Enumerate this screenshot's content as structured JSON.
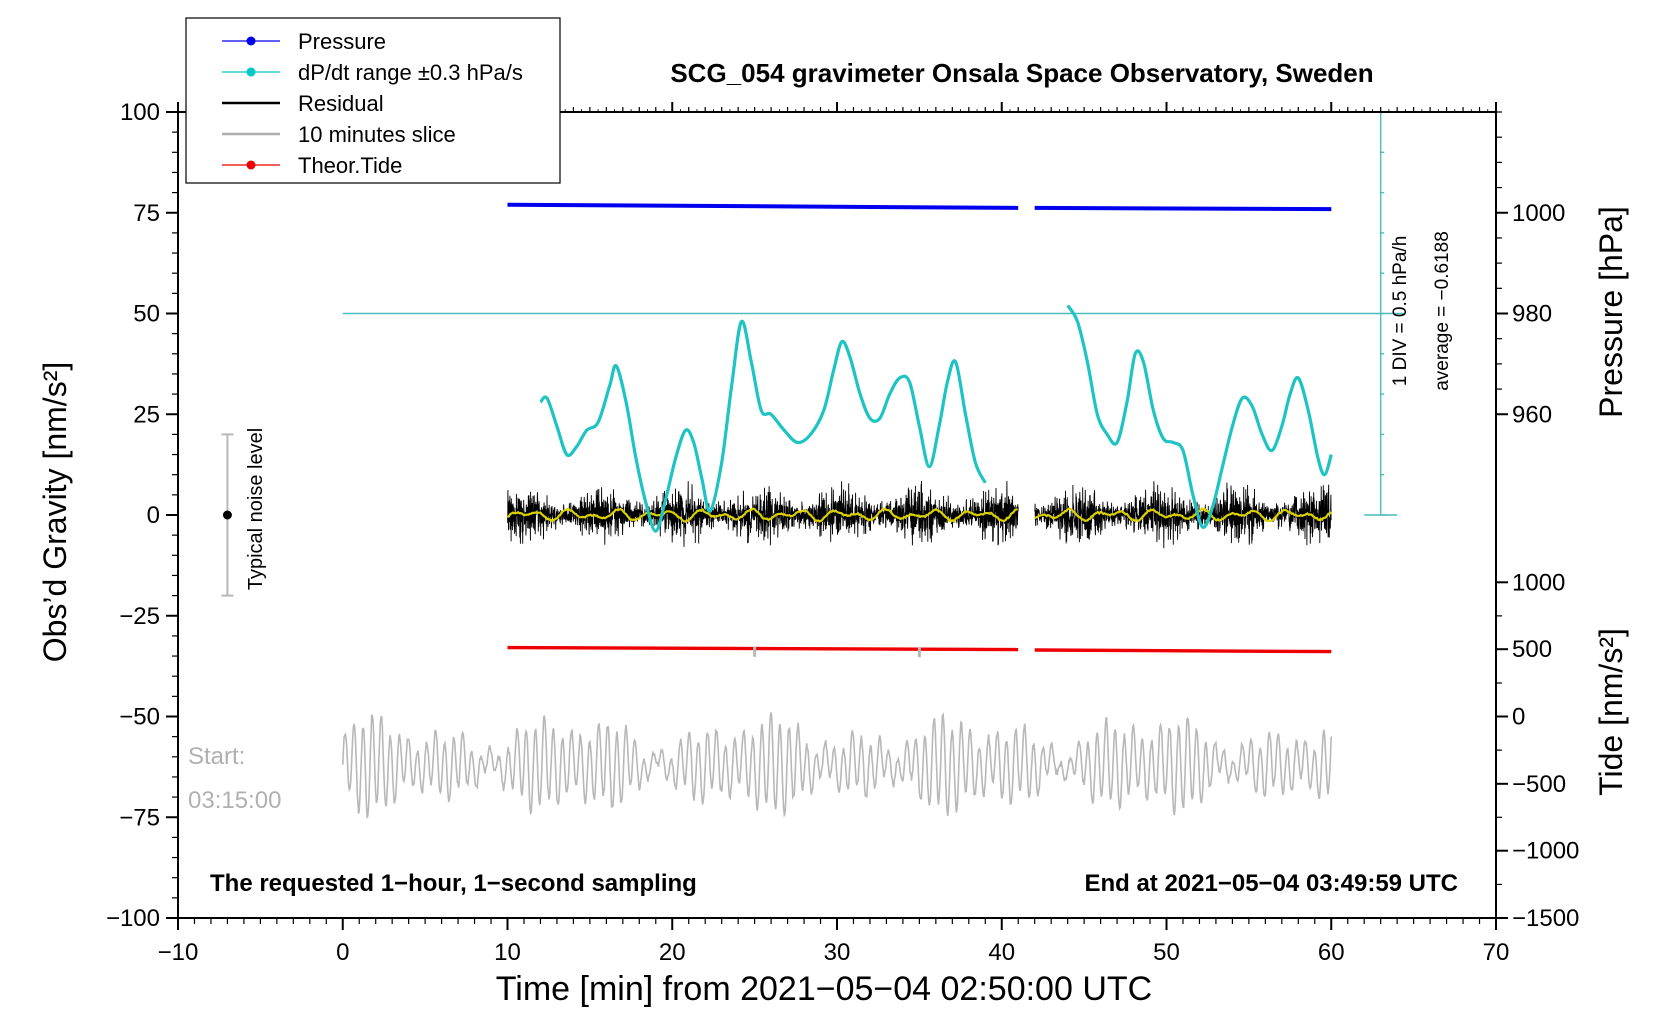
{
  "chart_data": {
    "type": "line",
    "title": "SCG_054 gravimeter Onsala Space Observatory, Sweden",
    "xlabel": "Time [min] from 2021−05−04 02:50:00 UTC",
    "ylabel_left": "Obs’d Gravity [nm/s²]",
    "ylabel_right_top": "Pressure [hPa]",
    "ylabel_right_bottom": "Tide [nm/s²]",
    "xlim": [
      -10,
      70
    ],
    "ylim_left": [
      -100,
      100
    ],
    "x_ticks": [
      {
        "value": -10,
        "label": "−10"
      },
      {
        "value": 0,
        "label": "0"
      },
      {
        "value": 10,
        "label": "10"
      },
      {
        "value": 20,
        "label": "20"
      },
      {
        "value": 30,
        "label": "30"
      },
      {
        "value": 40,
        "label": "40"
      },
      {
        "value": 50,
        "label": "50"
      },
      {
        "value": 60,
        "label": "60"
      },
      {
        "value": 70,
        "label": "70"
      }
    ],
    "y_left_ticks": [
      {
        "value": 100,
        "label": "100"
      },
      {
        "value": 75,
        "label": "75"
      },
      {
        "value": 50,
        "label": "50"
      },
      {
        "value": 25,
        "label": "25"
      },
      {
        "value": 0,
        "label": "0"
      },
      {
        "value": -25,
        "label": "−25"
      },
      {
        "value": -50,
        "label": "−50"
      },
      {
        "value": -75,
        "label": "−75"
      },
      {
        "value": -100,
        "label": "−100"
      }
    ],
    "pressure_axis": {
      "ticks": [
        {
          "value": 1000,
          "label": "1000",
          "at_left_value": 75
        },
        {
          "value": 980,
          "label": "980",
          "at_left_value": 50
        },
        {
          "value": 960,
          "label": "960",
          "at_left_value": 25
        }
      ]
    },
    "tide_axis": {
      "ticks": [
        {
          "value": 1000,
          "label": "1000",
          "at_left_value": -16.7
        },
        {
          "value": 500,
          "label": "500",
          "at_left_value": -33.3
        },
        {
          "value": 0,
          "label": "0",
          "at_left_value": -50
        },
        {
          "value": -500,
          "label": "−500",
          "at_left_value": -66.7
        },
        {
          "value": -1000,
          "label": "−1000",
          "at_left_value": -83.3
        },
        {
          "value": -1500,
          "label": "−1500",
          "at_left_value": -100
        }
      ]
    },
    "legend": {
      "position": "top-left",
      "entries": [
        {
          "label": "Pressure",
          "color": "#0000ee",
          "marker": true
        },
        {
          "label": "dP/dt range ±0.3 hPa/s",
          "color": "#00c8c8",
          "marker": true
        },
        {
          "label": "Residual",
          "color": "#000000",
          "marker": false
        },
        {
          "label": "10 minutes slice",
          "color": "#b0b0b0",
          "marker": false
        },
        {
          "label": "Theor.Tide",
          "color": "#ee0000",
          "marker": true
        }
      ]
    },
    "series": [
      {
        "name": "Pressure",
        "color": "#0000ee",
        "segments": [
          {
            "x": [
              10,
              41
            ],
            "y": [
              77.0,
              76.2
            ]
          },
          {
            "x": [
              42,
              60
            ],
            "y": [
              76.2,
              75.9
            ]
          }
        ]
      },
      {
        "name": "dP/dt",
        "color": "#1ec3c3",
        "segments": [
          {
            "x": [
              12,
              12.4,
              13,
              13.6,
              14.2,
              14.8,
              15.5,
              16.2,
              16.6,
              17.2,
              17.8,
              18.4,
              19,
              19.6,
              20.2,
              20.8,
              21.3,
              21.8,
              22.3,
              23,
              23.6,
              24.2,
              24.8,
              25.4,
              26,
              26.8,
              27.6,
              28.4,
              29.2,
              29.8,
              30.3,
              30.8,
              31.4,
              32,
              32.6,
              33.2,
              33.8,
              34.4,
              35,
              35.6,
              36.2,
              36.7,
              37.2,
              37.8,
              38.4,
              39.0
            ],
            "y": [
              28,
              29,
              22,
              15,
              17,
              21,
              23,
              32,
              37,
              28,
              14,
              3,
              -4,
              4,
              14,
              21,
              18,
              9,
              1,
              13,
              32,
              48,
              38,
              26,
              25,
              21,
              18,
              20,
              26,
              36,
              43,
              39,
              30,
              24,
              24,
              30,
              34,
              33,
              22,
              12,
              22,
              33,
              38,
              25,
              13,
              8
            ]
          },
          {
            "x": [
              44,
              44.6,
              45.2,
              45.8,
              46.4,
              47,
              47.6,
              48.1,
              48.6,
              49.2,
              49.8,
              50.4,
              51,
              51.6,
              52.2,
              52.8,
              53.4,
              54,
              54.6,
              55.2,
              55.8,
              56.4,
              57,
              57.5,
              58,
              58.6,
              59.2,
              59.6,
              60
            ],
            "y": [
              52,
              48,
              38,
              25,
              20,
              18,
              28,
              40,
              38,
              26,
              19,
              18,
              16,
              5,
              -3,
              2,
              12,
              22,
              29,
              27,
              20,
              16,
              22,
              30,
              34,
              26,
              14,
              10,
              15
            ]
          }
        ]
      },
      {
        "name": "Residual",
        "color": "#000000",
        "segments": [
          {
            "x_start": 10,
            "x_end": 41,
            "amplitude": 12
          },
          {
            "x_start": 42,
            "x_end": 60,
            "amplitude": 12
          }
        ]
      },
      {
        "name": "Smoothed residual",
        "color": "#d8d000",
        "segments": [
          {
            "x_start": 10,
            "x_end": 41,
            "amplitude": 1.5
          },
          {
            "x_start": 42,
            "x_end": 60,
            "amplitude": 1.5
          }
        ]
      },
      {
        "name": "Theor.Tide",
        "color": "#ee0000",
        "segments": [
          {
            "x": [
              10,
              41
            ],
            "y": [
              -32.9,
              -33.4
            ]
          },
          {
            "x": [
              42,
              60
            ],
            "y": [
              -33.5,
              -33.9
            ]
          }
        ]
      },
      {
        "name": "10 minutes slice",
        "color": "#b8b8b8",
        "segments": [
          {
            "x_start": 0,
            "x_end": 60,
            "center": -62,
            "amplitude": 11
          }
        ]
      }
    ],
    "tide_marks": [
      {
        "x": 25,
        "y": -33.2
      },
      {
        "x": 35,
        "y": -33.3
      }
    ],
    "pressure_scale": {
      "line_y": 50,
      "bar_x": 63,
      "bar_top": 100,
      "bar_bottom": 0,
      "label_div": "1 DIV = 0.5 hPa/h",
      "label_avg": "average = −0.6188"
    },
    "noise_level": {
      "x": -7,
      "center": 0,
      "top": 20,
      "bottom": -20,
      "label": "Typical noise level"
    },
    "annotations": {
      "start_label": "Start:",
      "start_time": "03:15:00",
      "bottom_left": "The requested 1−hour, 1−second sampling",
      "bottom_right": "End at 2021−05−04 03:49:59 UTC"
    }
  }
}
